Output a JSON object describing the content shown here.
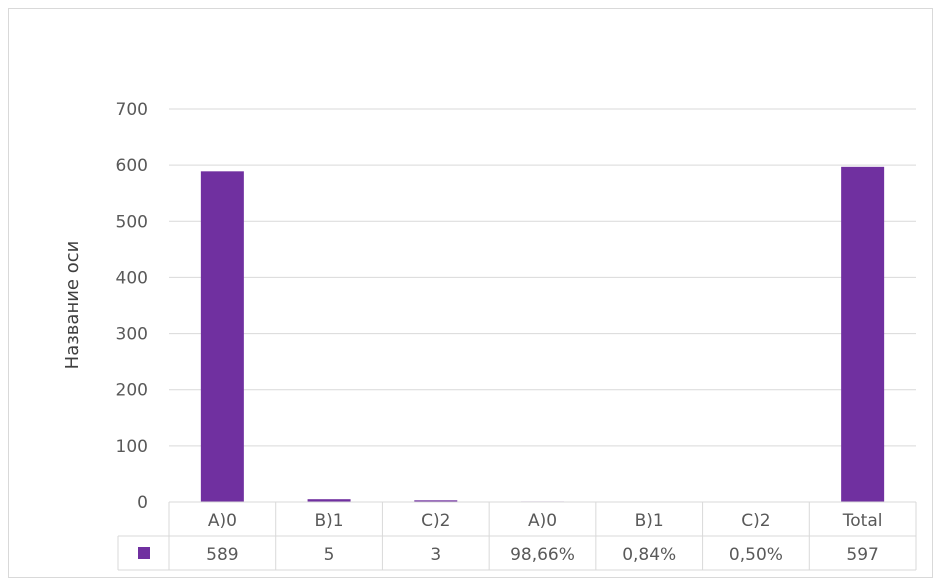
{
  "chart_data": {
    "type": "bar",
    "ylabel": "Название оси",
    "ylim": [
      0,
      700
    ],
    "yticks": [
      0,
      100,
      200,
      300,
      400,
      500,
      600,
      700
    ],
    "grid": true,
    "categories": [
      "A)0",
      "B)1",
      "C)2",
      "A)0",
      "B)1",
      "C)2",
      "Total"
    ],
    "series": [
      {
        "values": [
          589,
          5,
          3,
          0.9866,
          0.0084,
          0.005,
          597
        ],
        "labels": [
          "589",
          "5",
          "3",
          "98,66%",
          "0,84%",
          "0,50%",
          "597"
        ],
        "color": "#7030a0"
      }
    ],
    "data_table": true
  }
}
